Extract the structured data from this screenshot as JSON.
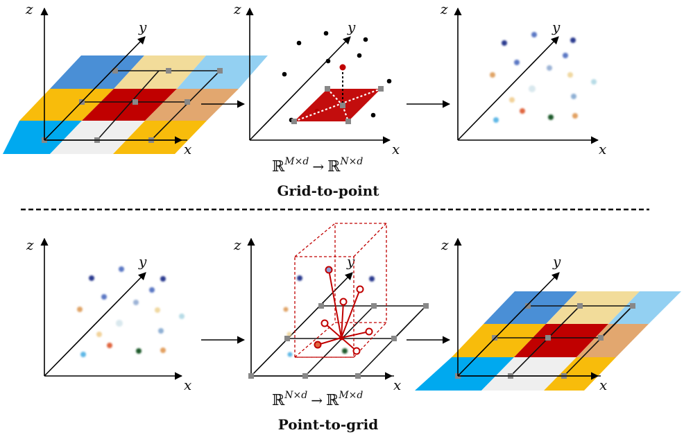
{
  "axes": {
    "x": "x",
    "y": "y",
    "z": "z"
  },
  "top": {
    "mapping": "ℝ^{M×d} → ℝ^{N×d}",
    "mapping_base_in": "ℝ",
    "mapping_exp_in": "M×d",
    "mapping_arrow": "→",
    "mapping_base_out": "ℝ",
    "mapping_exp_out": "N×d",
    "caption": "Grid-to-point"
  },
  "bottom": {
    "mapping": "ℝ^{N×d} → ℝ^{M×d}",
    "mapping_base_in": "ℝ",
    "mapping_exp_in": "N×d",
    "mapping_arrow": "→",
    "mapping_base_out": "ℝ",
    "mapping_exp_out": "M×d",
    "caption": "Point-to-grid"
  },
  "colors": {
    "grid_cells": [
      "#4a8fd6",
      "#f2dc9a",
      "#93d0f2",
      "#f8bc0b",
      "#c00000",
      "#e2a76f",
      "#00a9ef",
      "#efefef",
      "#f8bc0b"
    ],
    "accent_red": "#c00000",
    "node_gray": "#888888",
    "point_colors": [
      "#2b3a8f",
      "#5b78c4",
      "#e0a468",
      "#9cb3d6",
      "#f0d8a0",
      "#b7dbe6",
      "#f2d29a",
      "#e06640",
      "#1e5a2c",
      "#5fb8e6",
      "#e2a060",
      "#8fb0d4",
      "#d9e8ee"
    ]
  }
}
